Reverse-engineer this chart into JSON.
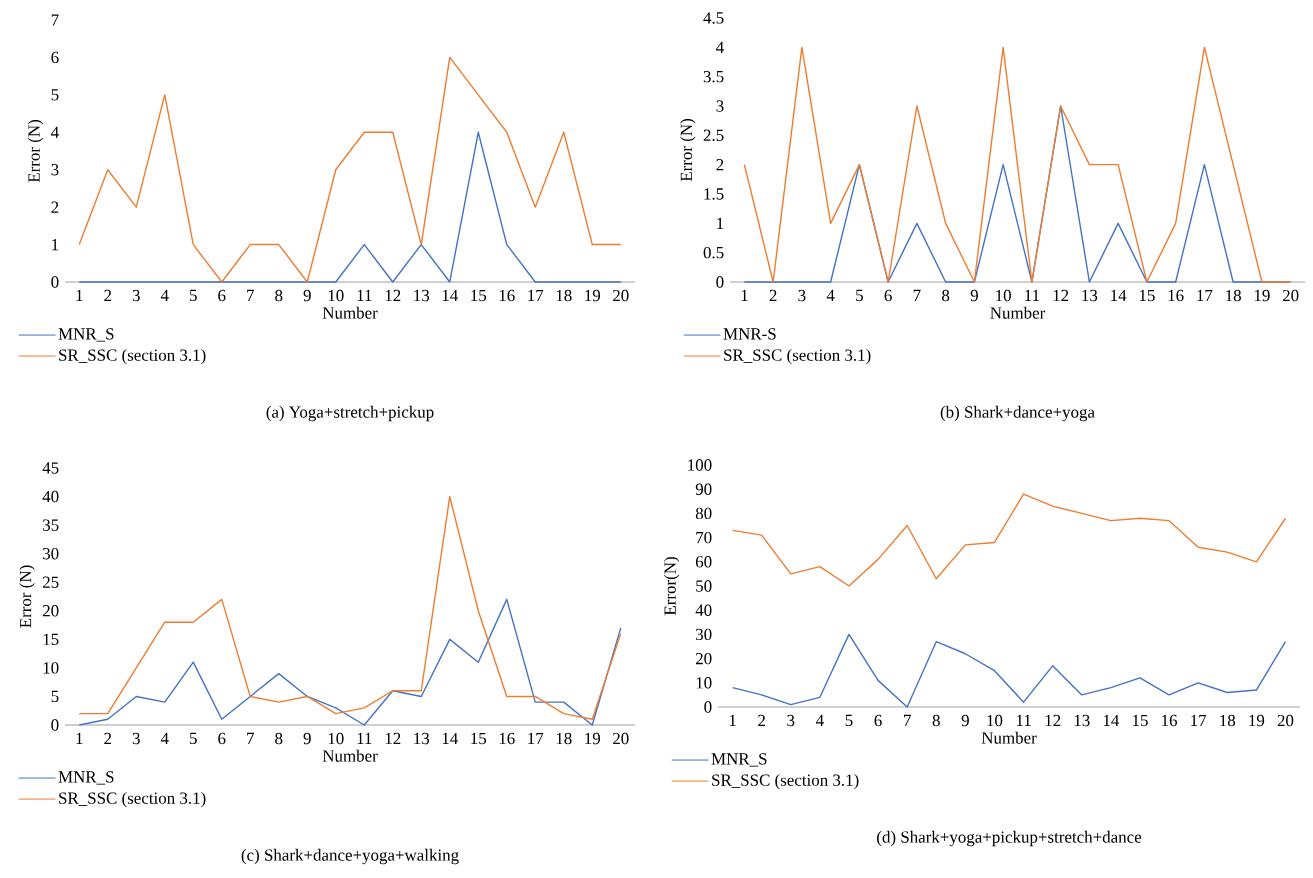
{
  "chart_data": [
    {
      "type": "line",
      "categories": [
        "1",
        "2",
        "3",
        "4",
        "5",
        "6",
        "7",
        "8",
        "9",
        "10",
        "11",
        "12",
        "13",
        "14",
        "15",
        "16",
        "17",
        "18",
        "19",
        "20"
      ],
      "xlabel": "Number",
      "ylabel": "Error (N)",
      "ylim": [
        0,
        7
      ],
      "yticks": [
        0,
        1,
        2,
        3,
        4,
        5,
        6,
        7
      ],
      "legend": "bottom left",
      "annotations": [
        "(a) Yoga+stretch+pickup"
      ],
      "series": [
        {
          "name": "MNR_S",
          "color": "#4472c4",
          "values": [
            0,
            0,
            0,
            0,
            0,
            0,
            0,
            0,
            0,
            0,
            1,
            0,
            1,
            0,
            4,
            1,
            0,
            0,
            0,
            0
          ]
        },
        {
          "name": "SR_SSC (section 3.1)",
          "color": "#ed7d31",
          "values": [
            1,
            3,
            2,
            5,
            1,
            0,
            1,
            1,
            0,
            3,
            4,
            4,
            1,
            6,
            5,
            4,
            2,
            4,
            1,
            1
          ]
        }
      ]
    },
    {
      "type": "line",
      "categories": [
        "1",
        "2",
        "3",
        "4",
        "5",
        "6",
        "7",
        "8",
        "9",
        "10",
        "11",
        "12",
        "13",
        "14",
        "15",
        "16",
        "17",
        "18",
        "19",
        "20"
      ],
      "xlabel": "Number",
      "ylabel": "Error (N)",
      "ylim": [
        0,
        4.5
      ],
      "yticks": [
        0,
        0.5,
        1,
        1.5,
        2,
        2.5,
        3,
        3.5,
        4,
        4.5
      ],
      "legend": "bottom left",
      "annotations": [
        "(b) Shark+dance+yoga"
      ],
      "series": [
        {
          "name": "MNR-S",
          "color": "#4472c4",
          "values": [
            0,
            0,
            0,
            0,
            2,
            0,
            1,
            0,
            0,
            2,
            0,
            3,
            0,
            1,
            0,
            0,
            2,
            0,
            0,
            0
          ]
        },
        {
          "name": "SR_SSC (section 3.1)",
          "color": "#ed7d31",
          "values": [
            2,
            0,
            4,
            1,
            2,
            0,
            3,
            1,
            0,
            4,
            0,
            3,
            2,
            2,
            0,
            1,
            4,
            2,
            0,
            0
          ]
        }
      ]
    },
    {
      "type": "line",
      "categories": [
        "1",
        "2",
        "3",
        "4",
        "5",
        "6",
        "7",
        "8",
        "9",
        "10",
        "11",
        "12",
        "13",
        "14",
        "15",
        "16",
        "17",
        "18",
        "19",
        "20"
      ],
      "xlabel": "Number",
      "ylabel": "Error (N)",
      "ylim": [
        0,
        45
      ],
      "yticks": [
        0,
        5,
        10,
        15,
        20,
        25,
        30,
        35,
        40,
        45
      ],
      "legend": "bottom left",
      "annotations": [
        "(c) Shark+dance+yoga+walking"
      ],
      "series": [
        {
          "name": "MNR_S",
          "color": "#4472c4",
          "values": [
            0,
            1,
            5,
            4,
            11,
            1,
            5,
            9,
            5,
            3,
            0,
            6,
            5,
            15,
            11,
            22,
            4,
            4,
            0,
            17
          ]
        },
        {
          "name": "SR_SSC (section 3.1)",
          "color": "#ed7d31",
          "values": [
            2,
            2,
            10,
            18,
            18,
            22,
            5,
            4,
            5,
            2,
            3,
            6,
            6,
            40,
            20,
            5,
            5,
            2,
            1,
            16
          ]
        }
      ]
    },
    {
      "type": "line",
      "categories": [
        "1",
        "2",
        "3",
        "4",
        "5",
        "6",
        "7",
        "8",
        "9",
        "10",
        "11",
        "12",
        "13",
        "14",
        "15",
        "16",
        "17",
        "18",
        "19",
        "20"
      ],
      "xlabel": "Number",
      "ylabel": "Error(N)",
      "ylim": [
        0,
        100
      ],
      "yticks": [
        0,
        10,
        20,
        30,
        40,
        50,
        60,
        70,
        80,
        90,
        100
      ],
      "legend": "bottom left",
      "annotations": [
        "(d) Shark+yoga+pickup+stretch+dance"
      ],
      "series": [
        {
          "name": "MNR_S",
          "color": "#4472c4",
          "values": [
            8,
            5,
            1,
            4,
            30,
            11,
            0,
            27,
            22,
            15,
            2,
            17,
            5,
            8,
            12,
            5,
            10,
            6,
            7,
            27
          ]
        },
        {
          "name": "SR_SSC (section 3.1)",
          "color": "#ed7d31",
          "values": [
            73,
            71,
            55,
            58,
            50,
            61,
            75,
            53,
            67,
            68,
            88,
            83,
            80,
            77,
            78,
            77,
            66,
            64,
            60,
            78
          ]
        }
      ]
    }
  ]
}
